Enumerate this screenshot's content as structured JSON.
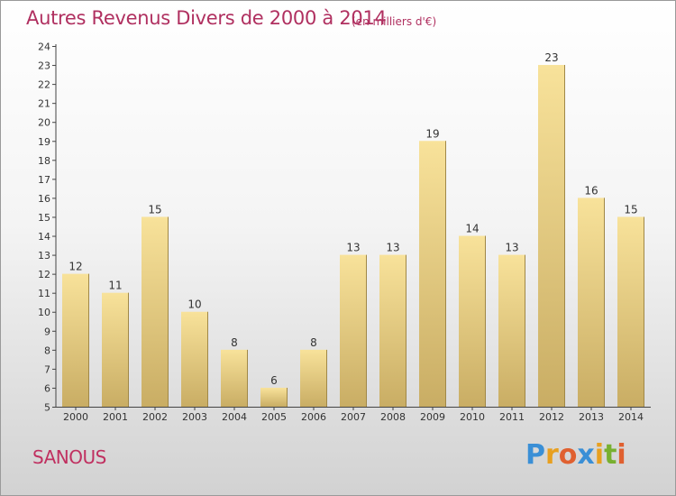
{
  "title": "Autres Revenus Divers de 2000 à 2014",
  "unit_note": "(en milliers d'€)",
  "place_name": "SANOUS",
  "logo": {
    "letters": [
      "P",
      "r",
      "o",
      "x",
      "i",
      "t",
      "i"
    ],
    "colors": [
      "#3a8fd6",
      "#e8a020",
      "#e06030",
      "#3a8fd6",
      "#e8a020",
      "#78b030",
      "#e06030"
    ]
  },
  "colors": {
    "bar_top": "#f8e29a",
    "bar_bottom": "#c9ad64",
    "title": "#b03060",
    "place": "#c03060"
  },
  "chart_data": {
    "type": "bar",
    "title": "Autres Revenus Divers de 2000 à 2014",
    "subtitle": "(en milliers d'€)",
    "xlabel": "",
    "ylabel": "",
    "categories": [
      "2000",
      "2001",
      "2002",
      "2003",
      "2004",
      "2005",
      "2006",
      "2007",
      "2008",
      "2009",
      "2010",
      "2011",
      "2012",
      "2013",
      "2014"
    ],
    "values": [
      12,
      11,
      15,
      10,
      8,
      6,
      8,
      13,
      13,
      19,
      14,
      13,
      23,
      16,
      15
    ],
    "data_labels": [
      "12",
      "11",
      "15",
      "10",
      "8",
      "6",
      "8",
      "13",
      "13",
      "19",
      "14",
      "13",
      "23",
      "16",
      "15"
    ],
    "ylim": [
      5,
      24
    ],
    "yticks": [
      5,
      6,
      7,
      8,
      9,
      10,
      11,
      12,
      13,
      14,
      15,
      16,
      17,
      18,
      19,
      20,
      21,
      22,
      23,
      24
    ],
    "grid": false,
    "legend": "none"
  }
}
